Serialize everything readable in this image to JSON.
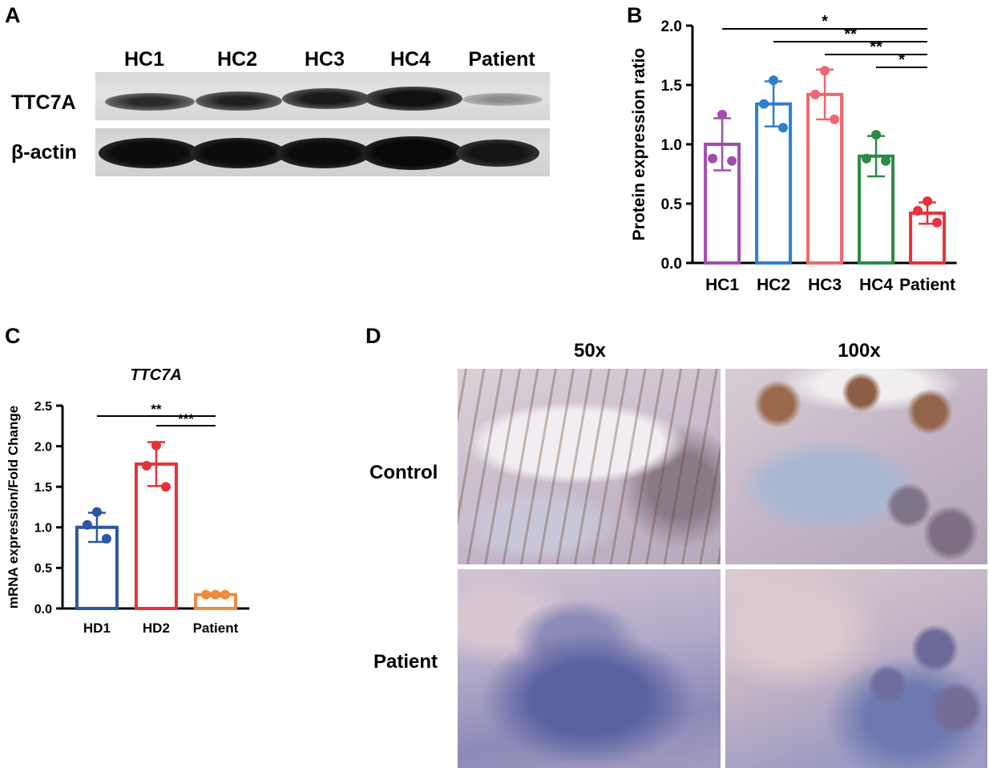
{
  "panels": {
    "a": {
      "label": "A",
      "lanes": [
        "HC1",
        "HC2",
        "HC3",
        "HC4",
        "Patient"
      ],
      "rows": [
        "TTC7A",
        "β-actin"
      ]
    },
    "b": {
      "label": "B"
    },
    "c": {
      "label": "C"
    },
    "d": {
      "label": "D",
      "columns": [
        "50x",
        "100x"
      ],
      "rows": [
        "Control",
        "Patient"
      ]
    }
  },
  "chart_data": [
    {
      "type": "bar",
      "panel": "B",
      "title": "",
      "xlabel": "",
      "ylabel": "Protein expression ratio",
      "categories": [
        "HC1",
        "HC2",
        "HC3",
        "HC4",
        "Patient"
      ],
      "values": [
        1.0,
        1.34,
        1.42,
        0.9,
        0.42
      ],
      "errors": [
        0.22,
        0.19,
        0.21,
        0.17,
        0.09
      ],
      "points": [
        [
          1.25,
          0.88,
          0.86
        ],
        [
          1.54,
          1.34,
          1.14
        ],
        [
          1.62,
          1.42,
          1.21
        ],
        [
          1.08,
          0.88,
          0.86
        ],
        [
          0.52,
          0.44,
          0.34
        ]
      ],
      "colors": [
        "#a24bb0",
        "#2f7fcb",
        "#ee6670",
        "#2c8a47",
        "#e8313a"
      ],
      "ylim": [
        0,
        2.0
      ],
      "yticks": [
        "0.0",
        "0.5",
        "1.0",
        "1.5",
        "2.0"
      ],
      "significance": [
        {
          "from": "HC1",
          "to": "Patient",
          "label": "*"
        },
        {
          "from": "HC2",
          "to": "Patient",
          "label": "**"
        },
        {
          "from": "HC3",
          "to": "Patient",
          "label": "**"
        },
        {
          "from": "HC4",
          "to": "Patient",
          "label": "*"
        }
      ]
    },
    {
      "type": "bar",
      "panel": "C",
      "title": "TTC7A",
      "xlabel": "",
      "ylabel": "mRNA expression/Fold Change",
      "categories": [
        "HD1",
        "HD2",
        "Patient"
      ],
      "values": [
        1.0,
        1.78,
        0.17
      ],
      "errors": [
        0.18,
        0.27,
        0.02
      ],
      "points": [
        [
          1.19,
          1.03,
          0.86
        ],
        [
          2.01,
          1.76,
          1.5
        ],
        [
          0.17,
          0.17,
          0.17
        ]
      ],
      "colors": [
        "#2d55a8",
        "#e8313a",
        "#f08a3c"
      ],
      "ylim": [
        0,
        2.5
      ],
      "yticks": [
        "0.0",
        "0.5",
        "1.0",
        "1.5",
        "2.0",
        "2.5"
      ],
      "significance": [
        {
          "from": "HD1",
          "to": "Patient",
          "label": "**"
        },
        {
          "from": "HD2",
          "to": "Patient",
          "label": "***"
        }
      ]
    }
  ]
}
